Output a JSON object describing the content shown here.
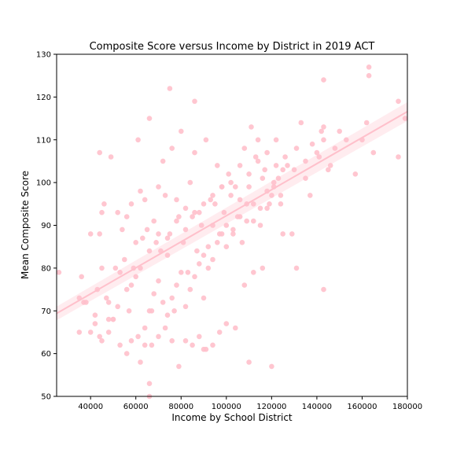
{
  "chart_data": {
    "type": "scatter",
    "title": "Composite Score versus Income by District in 2019 ACT",
    "xlabel": "Income by School District",
    "ylabel": "Mean Composite Score",
    "xlim": [
      25000,
      180000
    ],
    "ylim": [
      50,
      130
    ],
    "xticks": [
      40000,
      60000,
      80000,
      100000,
      120000,
      140000,
      160000,
      180000
    ],
    "yticks": [
      50,
      60,
      70,
      80,
      90,
      100,
      110,
      120,
      130
    ],
    "grid": false,
    "colors": {
      "points": "#ffc0cb",
      "trend": "#ffc0cb",
      "band": "#ffc0cb"
    },
    "regression": {
      "x": [
        25000,
        180000
      ],
      "y": [
        69.4,
        116.6
      ],
      "ci_halfwidth_at_ends": [
        1.6,
        2.2
      ]
    },
    "x": [
      26000,
      35000,
      36000,
      38000,
      40000,
      42000,
      43000,
      44000,
      44000,
      45000,
      45000,
      46000,
      47000,
      48000,
      49000,
      50000,
      51000,
      52000,
      53000,
      54000,
      55000,
      56000,
      57000,
      58000,
      59000,
      60000,
      61000,
      62000,
      63000,
      64000,
      65000,
      66000,
      67000,
      68000,
      69000,
      70000,
      71000,
      72000,
      73000,
      74000,
      75000,
      76000,
      77000,
      78000,
      79000,
      80000,
      81000,
      82000,
      83000,
      84000,
      85000,
      86000,
      87000,
      88000,
      89000,
      90000,
      91000,
      92000,
      93000,
      94000,
      95000,
      96000,
      97000,
      98000,
      99000,
      100000,
      101000,
      102000,
      103000,
      104000,
      105000,
      106000,
      107000,
      108000,
      109000,
      110000,
      111000,
      112000,
      113000,
      114000,
      115000,
      116000,
      117000,
      118000,
      119000,
      120000,
      121000,
      122000,
      123000,
      124000,
      125000,
      127000,
      129000,
      131000,
      133000,
      135000,
      137000,
      140000,
      142000,
      143000,
      145000,
      148000,
      150000,
      153000,
      157000,
      160000,
      162000,
      163000,
      165000,
      176000,
      179000,
      44000,
      48000,
      52000,
      56000,
      60000,
      64000,
      66000,
      68000,
      70000,
      72000,
      74000,
      76000,
      78000,
      80000,
      82000,
      84000,
      86000,
      88000,
      90000,
      92000,
      94000,
      96000,
      98000,
      100000,
      103000,
      106000,
      109000,
      112000,
      115000,
      118000,
      121000,
      124000,
      130000,
      135000,
      141000,
      146000,
      58000,
      62000,
      66000,
      70000,
      74000,
      78000,
      82000,
      86000,
      90000,
      94000,
      98000,
      102000,
      106000,
      110000,
      114000,
      118000,
      122000,
      126000,
      138000,
      143000,
      66000,
      66000,
      62000,
      75000,
      86000,
      90000,
      110000,
      143000,
      35000,
      37000,
      40000,
      42000,
      45000,
      48000,
      50000,
      53000,
      56000,
      58000,
      61000,
      64000,
      67000,
      70000,
      73000,
      76000,
      79000,
      82000,
      85000,
      88000,
      91000,
      94000,
      97000,
      100000,
      104000,
      108000,
      112000,
      116000,
      120000,
      125000,
      131000,
      143000,
      163000,
      176000
    ],
    "y": [
      79,
      73,
      78,
      72,
      88,
      69,
      75,
      88,
      107,
      93,
      80,
      95,
      73,
      72,
      106,
      68,
      80,
      93,
      79,
      89,
      82,
      92,
      70,
      95,
      80,
      86,
      110,
      98,
      87,
      96,
      89,
      115,
      70,
      91,
      86,
      99,
      84,
      105,
      97,
      83,
      88,
      108,
      70,
      96,
      92,
      112,
      86,
      94,
      79,
      100,
      92,
      107,
      84,
      93,
      90,
      73,
      110,
      85,
      96,
      90,
      95,
      104,
      88,
      99,
      93,
      90,
      102,
      97,
      88,
      99,
      92,
      104,
      86,
      108,
      91,
      99,
      113,
      95,
      106,
      110,
      90,
      101,
      103,
      94,
      95,
      97,
      99,
      110,
      101,
      95,
      103,
      104,
      88,
      108,
      114,
      105,
      97,
      107,
      112,
      110,
      103,
      108,
      112,
      110,
      102,
      110,
      114,
      127,
      107,
      119,
      115,
      64,
      68,
      71,
      75,
      78,
      66,
      70,
      74,
      77,
      72,
      69,
      73,
      76,
      79,
      71,
      75,
      78,
      81,
      83,
      80,
      82,
      86,
      88,
      85,
      89,
      92,
      95,
      91,
      94,
      98,
      100,
      97,
      103,
      101,
      106,
      104,
      76,
      80,
      84,
      88,
      87,
      91,
      89,
      93,
      95,
      97,
      99,
      100,
      96,
      102,
      105,
      107,
      104,
      106,
      109,
      113,
      53,
      50,
      58,
      122,
      119,
      61,
      58,
      124,
      65,
      72,
      65,
      67,
      63,
      65,
      68,
      62,
      60,
      63,
      64,
      62,
      62,
      64,
      66,
      63,
      57,
      63,
      62,
      64,
      61,
      62,
      65,
      67,
      66,
      76,
      79,
      80,
      57,
      88,
      80,
      75,
      125,
      106
    ]
  }
}
